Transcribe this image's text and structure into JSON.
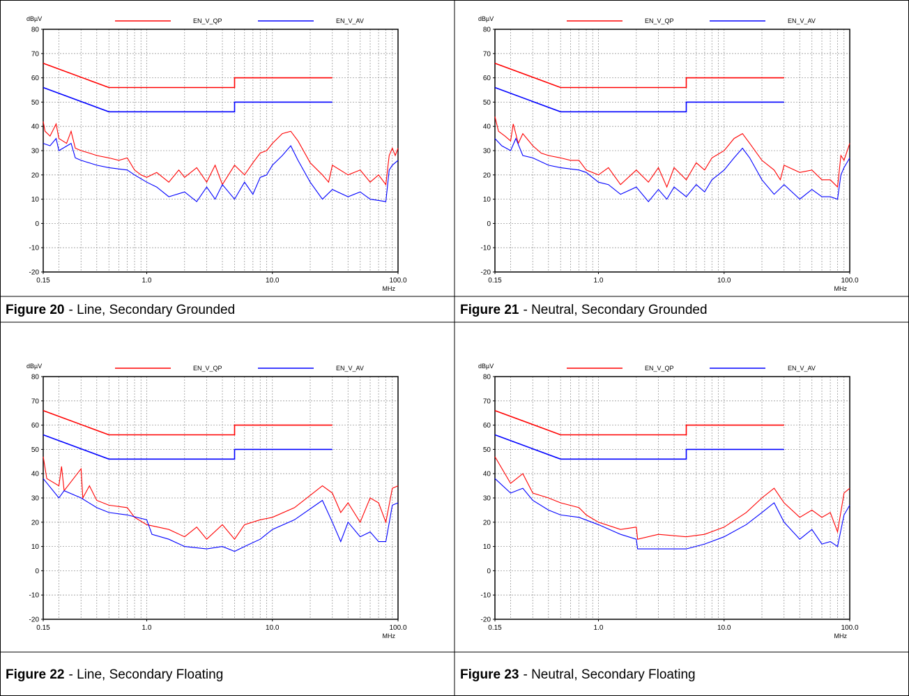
{
  "chart_data": [
    {
      "type": "line",
      "figure": "Figure 20",
      "caption": "- Line, Secondary Grounded",
      "y_label": "dBµV",
      "x_label": "MHz",
      "xscale": "log",
      "grid": true,
      "xlim": [
        0.15,
        100
      ],
      "xticks": [
        0.15,
        {
          "value": 1,
          "label": "1.0"
        },
        {
          "value": 10,
          "label": "10.0"
        },
        {
          "value": 100,
          "label": "100.0"
        }
      ],
      "xminorticks": [
        0.2,
        0.3,
        0.4,
        0.5,
        0.6,
        0.7,
        0.8,
        0.9,
        2,
        3,
        4,
        5,
        6,
        7,
        8,
        9,
        20,
        30,
        40,
        50,
        60,
        70,
        80,
        90
      ],
      "ylim": [
        -20,
        80
      ],
      "yticks": [
        -20,
        -10,
        0,
        10,
        20,
        30,
        40,
        50,
        60,
        70,
        80
      ],
      "series": [
        {
          "name": "EN_V_QP",
          "color": "#ff0000",
          "x": [
            0.15,
            0.5,
            5,
            5,
            30
          ],
          "values": [
            66,
            56,
            56,
            60,
            60
          ]
        },
        {
          "name": "EN_V_AV",
          "color": "#0000ff",
          "x": [
            0.15,
            0.5,
            5,
            5,
            30
          ],
          "values": [
            56,
            46,
            46,
            50,
            50
          ]
        },
        {
          "color": "#ff0000",
          "x": [
            0.15,
            0.155,
            0.17,
            0.19,
            0.2,
            0.23,
            0.25,
            0.27,
            0.3,
            0.35,
            0.4,
            0.5,
            0.6,
            0.7,
            0.8,
            0.9,
            1,
            1.2,
            1.5,
            1.8,
            2,
            2.5,
            3,
            3.5,
            4,
            5,
            6,
            7,
            8,
            9,
            10,
            12,
            14,
            16,
            20,
            25,
            28,
            30,
            40,
            50,
            60,
            70,
            80,
            85,
            90,
            95,
            100
          ],
          "values": [
            42,
            38,
            36,
            41,
            35,
            33,
            38,
            31,
            30,
            29,
            28,
            27,
            26,
            27,
            22,
            20,
            19,
            21,
            17,
            22,
            19,
            23,
            17,
            24,
            16,
            24,
            20,
            25,
            29,
            30,
            33,
            37,
            38,
            34,
            25,
            20,
            17,
            24,
            20,
            22,
            17,
            20,
            16,
            28,
            31,
            28,
            31
          ]
        },
        {
          "color": "#0000ff",
          "x": [
            0.15,
            0.17,
            0.19,
            0.2,
            0.25,
            0.27,
            0.3,
            0.4,
            0.5,
            0.7,
            0.8,
            1,
            1.2,
            1.5,
            2,
            2.5,
            3,
            3.5,
            4,
            5,
            6,
            7,
            8,
            9,
            10,
            12,
            14,
            16,
            20,
            25,
            30,
            40,
            50,
            60,
            80,
            85,
            90,
            100
          ],
          "values": [
            33,
            32,
            35,
            30,
            33,
            27,
            26,
            24,
            23,
            22,
            20,
            17,
            15,
            11,
            13,
            9,
            15,
            10,
            16,
            10,
            17,
            12,
            19,
            20,
            24,
            28,
            32,
            26,
            17,
            10,
            14,
            11,
            13,
            10,
            9,
            22,
            24,
            26
          ]
        }
      ]
    },
    {
      "type": "line",
      "figure": "Figure 21",
      "caption": "- Neutral, Secondary Grounded",
      "y_label": "dBµV",
      "x_label": "MHz",
      "xscale": "log",
      "grid": true,
      "xlim": [
        0.15,
        100
      ],
      "xticks": [
        0.15,
        {
          "value": 1,
          "label": "1.0"
        },
        {
          "value": 10,
          "label": "10.0"
        },
        {
          "value": 100,
          "label": "100.0"
        }
      ],
      "xminorticks": [
        0.2,
        0.3,
        0.4,
        0.5,
        0.6,
        0.7,
        0.8,
        0.9,
        2,
        3,
        4,
        5,
        6,
        7,
        8,
        9,
        20,
        30,
        40,
        50,
        60,
        70,
        80,
        90
      ],
      "ylim": [
        -20,
        80
      ],
      "yticks": [
        -20,
        -10,
        0,
        10,
        20,
        30,
        40,
        50,
        60,
        70,
        80
      ],
      "series": [
        {
          "name": "EN_V_QP",
          "color": "#ff0000",
          "x": [
            0.15,
            0.5,
            5,
            5,
            30
          ],
          "values": [
            66,
            56,
            56,
            60,
            60
          ]
        },
        {
          "name": "EN_V_AV",
          "color": "#0000ff",
          "x": [
            0.15,
            0.5,
            5,
            5,
            30
          ],
          "values": [
            56,
            46,
            46,
            50,
            50
          ]
        },
        {
          "color": "#ff0000",
          "x": [
            0.15,
            0.16,
            0.18,
            0.2,
            0.21,
            0.23,
            0.25,
            0.3,
            0.35,
            0.4,
            0.5,
            0.6,
            0.7,
            0.8,
            1,
            1.2,
            1.5,
            2,
            2.5,
            3,
            3.5,
            4,
            5,
            6,
            7,
            8,
            10,
            12,
            14,
            16,
            20,
            25,
            28,
            30,
            40,
            50,
            60,
            70,
            80,
            85,
            90,
            100
          ],
          "values": [
            44,
            38,
            36,
            34,
            41,
            33,
            37,
            32,
            29,
            28,
            27,
            26,
            26,
            22,
            20,
            23,
            16,
            22,
            17,
            23,
            15,
            23,
            18,
            25,
            22,
            27,
            30,
            35,
            37,
            33,
            26,
            22,
            18,
            24,
            21,
            22,
            18,
            18,
            15,
            28,
            26,
            33
          ]
        },
        {
          "color": "#0000ff",
          "x": [
            0.15,
            0.17,
            0.2,
            0.22,
            0.25,
            0.3,
            0.4,
            0.5,
            0.7,
            0.8,
            1,
            1.2,
            1.5,
            2,
            2.5,
            3,
            3.5,
            4,
            5,
            6,
            7,
            8,
            10,
            12,
            14,
            16,
            20,
            25,
            30,
            40,
            50,
            60,
            70,
            80,
            85,
            90,
            100
          ],
          "values": [
            35,
            32,
            30,
            35,
            28,
            27,
            24,
            23,
            22,
            21,
            17,
            16,
            12,
            15,
            9,
            14,
            10,
            15,
            11,
            16,
            13,
            18,
            22,
            27,
            31,
            27,
            18,
            12,
            16,
            10,
            14,
            11,
            11,
            10,
            20,
            23,
            27
          ]
        }
      ]
    },
    {
      "type": "line",
      "figure": "Figure 22",
      "caption": "- Line, Secondary Floating",
      "y_label": "dBµV",
      "x_label": "MHz",
      "xscale": "log",
      "grid": true,
      "xlim": [
        0.15,
        100
      ],
      "xticks": [
        0.15,
        {
          "value": 1,
          "label": "1.0"
        },
        {
          "value": 10,
          "label": "10.0"
        },
        {
          "value": 100,
          "label": "100.0"
        }
      ],
      "xminorticks": [
        0.2,
        0.3,
        0.4,
        0.5,
        0.6,
        0.7,
        0.8,
        0.9,
        2,
        3,
        4,
        5,
        6,
        7,
        8,
        9,
        20,
        30,
        40,
        50,
        60,
        70,
        80,
        90
      ],
      "ylim": [
        -20,
        80
      ],
      "yticks": [
        -20,
        -10,
        0,
        10,
        20,
        30,
        40,
        50,
        60,
        70,
        80
      ],
      "series": [
        {
          "name": "EN_V_QP",
          "color": "#ff0000",
          "x": [
            0.15,
            0.5,
            5,
            5,
            30
          ],
          "values": [
            66,
            56,
            56,
            60,
            60
          ]
        },
        {
          "name": "EN_V_AV",
          "color": "#0000ff",
          "x": [
            0.15,
            0.5,
            5,
            5,
            30
          ],
          "values": [
            56,
            46,
            46,
            50,
            50
          ]
        },
        {
          "color": "#ff0000",
          "x": [
            0.15,
            0.16,
            0.2,
            0.21,
            0.22,
            0.3,
            0.31,
            0.35,
            0.4,
            0.5,
            0.7,
            0.8,
            1,
            1.5,
            2,
            2.5,
            3,
            4,
            5,
            6,
            8,
            10,
            15,
            25,
            30,
            35,
            40,
            50,
            60,
            70,
            80,
            90,
            100
          ],
          "values": [
            47,
            38,
            35,
            43,
            33,
            42,
            30,
            35,
            29,
            27,
            26,
            22,
            19,
            17,
            14,
            18,
            13,
            19,
            13,
            19,
            21,
            22,
            26,
            35,
            32,
            24,
            28,
            20,
            30,
            28,
            20,
            34,
            35
          ]
        },
        {
          "color": "#0000ff",
          "x": [
            0.15,
            0.2,
            0.22,
            0.3,
            0.4,
            0.5,
            0.7,
            1,
            1.1,
            1.5,
            2,
            3,
            4,
            5,
            6,
            8,
            10,
            15,
            25,
            30,
            35,
            40,
            50,
            60,
            70,
            80,
            90,
            100
          ],
          "values": [
            38,
            30,
            33,
            30,
            26,
            24,
            23,
            21,
            15,
            13,
            10,
            9,
            10,
            8,
            10,
            13,
            17,
            21,
            29,
            20,
            12,
            20,
            14,
            16,
            12,
            12,
            27,
            28
          ]
        }
      ]
    },
    {
      "type": "line",
      "figure": "Figure 23",
      "caption": "- Neutral, Secondary Floating",
      "y_label": "dBµV",
      "x_label": "MHz",
      "xscale": "log",
      "grid": true,
      "xlim": [
        0.15,
        100
      ],
      "xticks": [
        0.15,
        {
          "value": 1,
          "label": "1.0"
        },
        {
          "value": 10,
          "label": "10.0"
        },
        {
          "value": 100,
          "label": "100.0"
        }
      ],
      "xminorticks": [
        0.2,
        0.3,
        0.4,
        0.5,
        0.6,
        0.7,
        0.8,
        0.9,
        2,
        3,
        4,
        5,
        6,
        7,
        8,
        9,
        20,
        30,
        40,
        50,
        60,
        70,
        80,
        90
      ],
      "ylim": [
        -20,
        80
      ],
      "yticks": [
        -20,
        -10,
        0,
        10,
        20,
        30,
        40,
        50,
        60,
        70,
        80
      ],
      "series": [
        {
          "name": "EN_V_QP",
          "color": "#ff0000",
          "x": [
            0.15,
            0.5,
            5,
            5,
            30
          ],
          "values": [
            66,
            56,
            56,
            60,
            60
          ]
        },
        {
          "name": "EN_V_AV",
          "color": "#0000ff",
          "x": [
            0.15,
            0.5,
            5,
            5,
            30
          ],
          "values": [
            56,
            46,
            46,
            50,
            50
          ]
        },
        {
          "color": "#ff0000",
          "x": [
            0.15,
            0.2,
            0.25,
            0.3,
            0.4,
            0.5,
            0.7,
            0.8,
            1,
            1.5,
            2,
            2.05,
            3,
            5,
            7,
            10,
            15,
            20,
            25,
            30,
            40,
            50,
            60,
            70,
            80,
            90,
            100
          ],
          "values": [
            47,
            36,
            40,
            32,
            30,
            28,
            26,
            23,
            20,
            17,
            18,
            13,
            15,
            14,
            15,
            18,
            24,
            30,
            34,
            28,
            22,
            25,
            22,
            24,
            16,
            32,
            34
          ]
        },
        {
          "color": "#0000ff",
          "x": [
            0.15,
            0.2,
            0.25,
            0.3,
            0.4,
            0.5,
            0.7,
            1,
            1.5,
            2,
            2.05,
            3,
            5,
            7,
            10,
            15,
            20,
            25,
            30,
            40,
            50,
            60,
            70,
            80,
            90,
            100
          ],
          "values": [
            38,
            32,
            34,
            29,
            25,
            23,
            22,
            19,
            15,
            13,
            9,
            9,
            9,
            11,
            14,
            19,
            24,
            28,
            20,
            13,
            17,
            11,
            12,
            10,
            23,
            27
          ]
        }
      ]
    }
  ]
}
